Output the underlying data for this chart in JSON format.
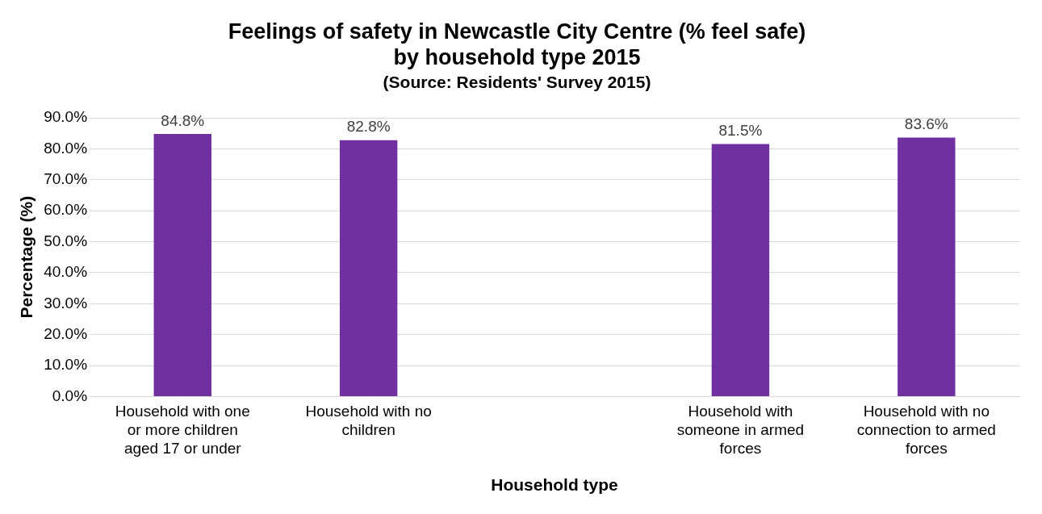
{
  "chart_data": {
    "type": "bar",
    "title": "Feelings of safety in Newcastle City Centre (% feel safe) by household type 2015",
    "subtitle": "(Source: Residents' Survey 2015)",
    "xlabel": "Household type",
    "ylabel": "Percentage (%)",
    "categories": [
      "Household with one or more children aged 17 or under",
      "Household with no children",
      null,
      "Household with someone in armed forces",
      "Household with no connection to armed forces"
    ],
    "values": [
      84.8,
      82.8,
      null,
      81.5,
      83.6
    ],
    "value_labels": [
      "84.8%",
      "82.8%",
      null,
      "81.5%",
      "83.6%"
    ],
    "color": "#7030a0",
    "ylim": [
      0,
      90
    ],
    "yticks": [
      {
        "value": 0,
        "label": "0.0%"
      },
      {
        "value": 10,
        "label": "10.0%"
      },
      {
        "value": 20,
        "label": "20.0%"
      },
      {
        "value": 30,
        "label": "30.0%"
      },
      {
        "value": 40,
        "label": "40.0%"
      },
      {
        "value": 50,
        "label": "50.0%"
      },
      {
        "value": 60,
        "label": "60.0%"
      },
      {
        "value": 70,
        "label": "70.0%"
      },
      {
        "value": 80,
        "label": "80.0%"
      },
      {
        "value": 90,
        "label": "90.0%"
      }
    ],
    "grid": "y",
    "legend": false
  }
}
